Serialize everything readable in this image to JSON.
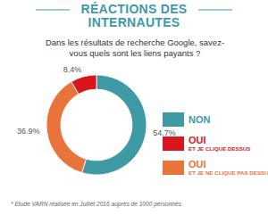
{
  "chart_data": {
    "type": "donut",
    "title": "RÉACTIONS DES INTERNAUTES",
    "subtitle": "Dans les résultats de recherche Google, savez-vous quels sont les liens payants ?",
    "categories": [
      "NON",
      "OUI ET JE CLIQUE DESSUS",
      "OUI ET JE NE CLIQUE PAS DESSUS"
    ],
    "values": [
      54.7,
      8.4,
      36.9
    ],
    "value_labels": [
      "54.7%",
      "8.4%",
      "36.9%"
    ],
    "colors": [
      "#3e9aa4",
      "#d7161e",
      "#e8743b"
    ],
    "data_labels": true,
    "legend": "right",
    "annotations": [
      "* Etude VARN réalisée en Juillet 2016 auprès de 1000 personnes"
    ]
  }
}
